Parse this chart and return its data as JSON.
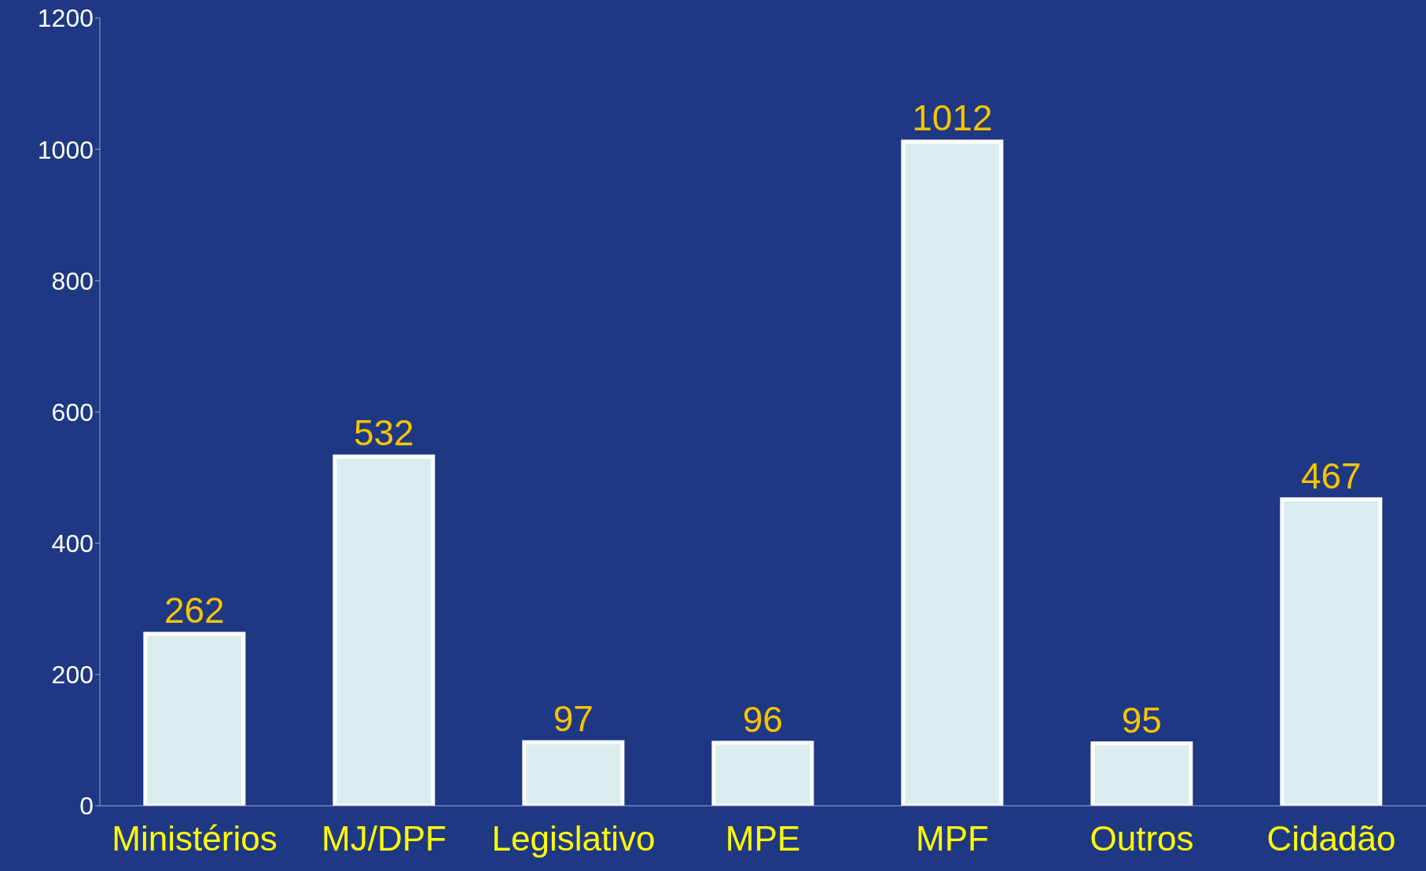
{
  "chart_data": {
    "type": "bar",
    "categories": [
      "Ministérios",
      "MJ/DPF",
      "Legislativo",
      "MPE",
      "MPF",
      "Outros",
      "Cidadão"
    ],
    "values": [
      262,
      532,
      97,
      96,
      1012,
      95,
      467
    ],
    "color": "#dcedef",
    "ylim": [
      0,
      1200
    ],
    "yticks": [
      0,
      200,
      400,
      600,
      800,
      1000,
      1200
    ],
    "grid": false,
    "legend": false,
    "data_labels": true
  }
}
